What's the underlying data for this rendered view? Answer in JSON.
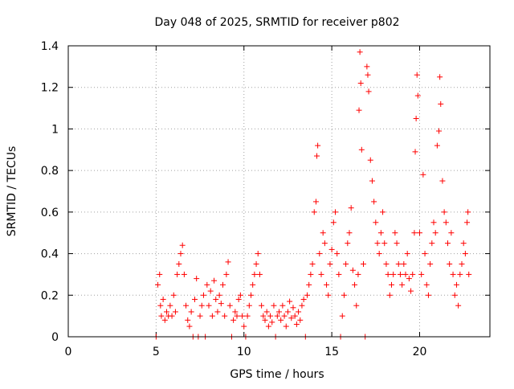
{
  "chart_data": {
    "type": "scatter",
    "title": "Day 048 of 2025, SRMTID for receiver p802",
    "xlabel": "GPS time / hours",
    "ylabel": "SRMTID / TECUs",
    "xlim": [
      0,
      24
    ],
    "ylim": [
      0,
      1.4
    ],
    "x_ticks": [
      0,
      5,
      10,
      15,
      20
    ],
    "x_tick_labels": [
      "0",
      "5",
      "10",
      "15",
      "20"
    ],
    "y_ticks": [
      0,
      0.2,
      0.4,
      0.6,
      0.8,
      1.0,
      1.2,
      1.4
    ],
    "y_tick_labels": [
      "0",
      "0.2",
      "0.4",
      "0.6",
      "0.8",
      "1",
      "1.2",
      "1.4"
    ],
    "grid": true,
    "marker": "+",
    "color": "#ff0000",
    "series": [
      {
        "name": "SRMTID",
        "points": [
          [
            5.0,
            0.0
          ],
          [
            5.1,
            0.25
          ],
          [
            5.2,
            0.3
          ],
          [
            5.25,
            0.15
          ],
          [
            5.3,
            0.1
          ],
          [
            5.4,
            0.18
          ],
          [
            5.5,
            0.08
          ],
          [
            5.6,
            0.12
          ],
          [
            5.7,
            0.1
          ],
          [
            5.8,
            0.15
          ],
          [
            5.9,
            0.1
          ],
          [
            6.0,
            0.2
          ],
          [
            6.1,
            0.12
          ],
          [
            6.2,
            0.3
          ],
          [
            6.3,
            0.35
          ],
          [
            6.4,
            0.4
          ],
          [
            6.5,
            0.44
          ],
          [
            6.6,
            0.3
          ],
          [
            6.7,
            0.15
          ],
          [
            6.8,
            0.08
          ],
          [
            6.9,
            0.05
          ],
          [
            7.0,
            0.12
          ],
          [
            7.1,
            0.0
          ],
          [
            7.2,
            0.18
          ],
          [
            7.3,
            0.28
          ],
          [
            7.4,
            0.0
          ],
          [
            7.5,
            0.1
          ],
          [
            7.6,
            0.15
          ],
          [
            7.7,
            0.2
          ],
          [
            7.8,
            0.0
          ],
          [
            7.9,
            0.25
          ],
          [
            8.0,
            0.15
          ],
          [
            8.1,
            0.22
          ],
          [
            8.2,
            0.1
          ],
          [
            8.3,
            0.27
          ],
          [
            8.4,
            0.18
          ],
          [
            8.5,
            0.12
          ],
          [
            8.6,
            0.2
          ],
          [
            8.7,
            0.16
          ],
          [
            8.8,
            0.25
          ],
          [
            8.9,
            0.1
          ],
          [
            9.0,
            0.3
          ],
          [
            9.1,
            0.36
          ],
          [
            9.2,
            0.15
          ],
          [
            9.3,
            0.0
          ],
          [
            9.4,
            0.08
          ],
          [
            9.5,
            0.12
          ],
          [
            9.6,
            0.1
          ],
          [
            9.7,
            0.18
          ],
          [
            9.8,
            0.2
          ],
          [
            9.9,
            0.1
          ],
          [
            10.0,
            0.05
          ],
          [
            10.1,
            0.0
          ],
          [
            10.2,
            0.1
          ],
          [
            10.3,
            0.15
          ],
          [
            10.4,
            0.2
          ],
          [
            10.5,
            0.25
          ],
          [
            10.6,
            0.3
          ],
          [
            10.7,
            0.35
          ],
          [
            10.8,
            0.4
          ],
          [
            10.9,
            0.3
          ],
          [
            11.0,
            0.15
          ],
          [
            11.1,
            0.1
          ],
          [
            11.2,
            0.08
          ],
          [
            11.3,
            0.12
          ],
          [
            11.4,
            0.05
          ],
          [
            11.5,
            0.1
          ],
          [
            11.6,
            0.07
          ],
          [
            11.7,
            0.15
          ],
          [
            11.8,
            0.0
          ],
          [
            11.9,
            0.1
          ],
          [
            12.0,
            0.12
          ],
          [
            12.1,
            0.08
          ],
          [
            12.2,
            0.15
          ],
          [
            12.3,
            0.1
          ],
          [
            12.4,
            0.05
          ],
          [
            12.5,
            0.12
          ],
          [
            12.6,
            0.17
          ],
          [
            12.7,
            0.09
          ],
          [
            12.8,
            0.14
          ],
          [
            12.9,
            0.1
          ],
          [
            13.0,
            0.06
          ],
          [
            13.1,
            0.12
          ],
          [
            13.2,
            0.08
          ],
          [
            13.3,
            0.15
          ],
          [
            13.4,
            0.18
          ],
          [
            13.5,
            0.0
          ],
          [
            13.6,
            0.2
          ],
          [
            13.7,
            0.25
          ],
          [
            13.8,
            0.3
          ],
          [
            13.9,
            0.35
          ],
          [
            14.0,
            0.6
          ],
          [
            14.1,
            0.65
          ],
          [
            14.15,
            0.87
          ],
          [
            14.2,
            0.92
          ],
          [
            14.3,
            0.4
          ],
          [
            14.4,
            0.3
          ],
          [
            14.5,
            0.5
          ],
          [
            14.6,
            0.45
          ],
          [
            14.7,
            0.25
          ],
          [
            14.8,
            0.2
          ],
          [
            14.9,
            0.35
          ],
          [
            15.0,
            0.42
          ],
          [
            15.1,
            0.55
          ],
          [
            15.2,
            0.6
          ],
          [
            15.3,
            0.4
          ],
          [
            15.4,
            0.3
          ],
          [
            15.5,
            0.0
          ],
          [
            15.6,
            0.1
          ],
          [
            15.7,
            0.2
          ],
          [
            15.8,
            0.35
          ],
          [
            15.9,
            0.45
          ],
          [
            16.0,
            0.5
          ],
          [
            16.1,
            0.62
          ],
          [
            16.2,
            0.32
          ],
          [
            16.3,
            0.25
          ],
          [
            16.4,
            0.15
          ],
          [
            16.5,
            0.3
          ],
          [
            16.55,
            1.09
          ],
          [
            16.6,
            1.37
          ],
          [
            16.65,
            1.22
          ],
          [
            16.7,
            0.9
          ],
          [
            16.8,
            0.35
          ],
          [
            16.9,
            0.0
          ],
          [
            17.0,
            1.3
          ],
          [
            17.05,
            1.26
          ],
          [
            17.1,
            1.18
          ],
          [
            17.2,
            0.85
          ],
          [
            17.3,
            0.75
          ],
          [
            17.4,
            0.65
          ],
          [
            17.5,
            0.55
          ],
          [
            17.6,
            0.45
          ],
          [
            17.7,
            0.4
          ],
          [
            17.8,
            0.5
          ],
          [
            17.9,
            0.6
          ],
          [
            18.0,
            0.45
          ],
          [
            18.1,
            0.35
          ],
          [
            18.2,
            0.3
          ],
          [
            18.3,
            0.2
          ],
          [
            18.4,
            0.25
          ],
          [
            18.5,
            0.3
          ],
          [
            18.6,
            0.5
          ],
          [
            18.7,
            0.45
          ],
          [
            18.8,
            0.35
          ],
          [
            18.9,
            0.3
          ],
          [
            19.0,
            0.25
          ],
          [
            19.1,
            0.35
          ],
          [
            19.2,
            0.3
          ],
          [
            19.3,
            0.4
          ],
          [
            19.4,
            0.28
          ],
          [
            19.5,
            0.22
          ],
          [
            19.6,
            0.3
          ],
          [
            19.7,
            0.5
          ],
          [
            19.75,
            0.89
          ],
          [
            19.8,
            1.05
          ],
          [
            19.85,
            1.26
          ],
          [
            19.9,
            1.16
          ],
          [
            20.0,
            0.5
          ],
          [
            20.1,
            0.3
          ],
          [
            20.2,
            0.78
          ],
          [
            20.3,
            0.4
          ],
          [
            20.4,
            0.25
          ],
          [
            20.5,
            0.2
          ],
          [
            20.6,
            0.35
          ],
          [
            20.7,
            0.45
          ],
          [
            20.8,
            0.55
          ],
          [
            20.9,
            0.5
          ],
          [
            21.0,
            0.92
          ],
          [
            21.1,
            0.99
          ],
          [
            21.15,
            1.25
          ],
          [
            21.2,
            1.12
          ],
          [
            21.3,
            0.75
          ],
          [
            21.4,
            0.6
          ],
          [
            21.5,
            0.55
          ],
          [
            21.6,
            0.45
          ],
          [
            21.7,
            0.35
          ],
          [
            21.8,
            0.5
          ],
          [
            21.9,
            0.3
          ],
          [
            22.0,
            0.2
          ],
          [
            22.1,
            0.25
          ],
          [
            22.2,
            0.15
          ],
          [
            22.3,
            0.3
          ],
          [
            22.4,
            0.35
          ],
          [
            22.5,
            0.45
          ],
          [
            22.6,
            0.4
          ],
          [
            22.7,
            0.55
          ],
          [
            22.75,
            0.6
          ],
          [
            22.8,
            0.3
          ]
        ]
      }
    ]
  }
}
